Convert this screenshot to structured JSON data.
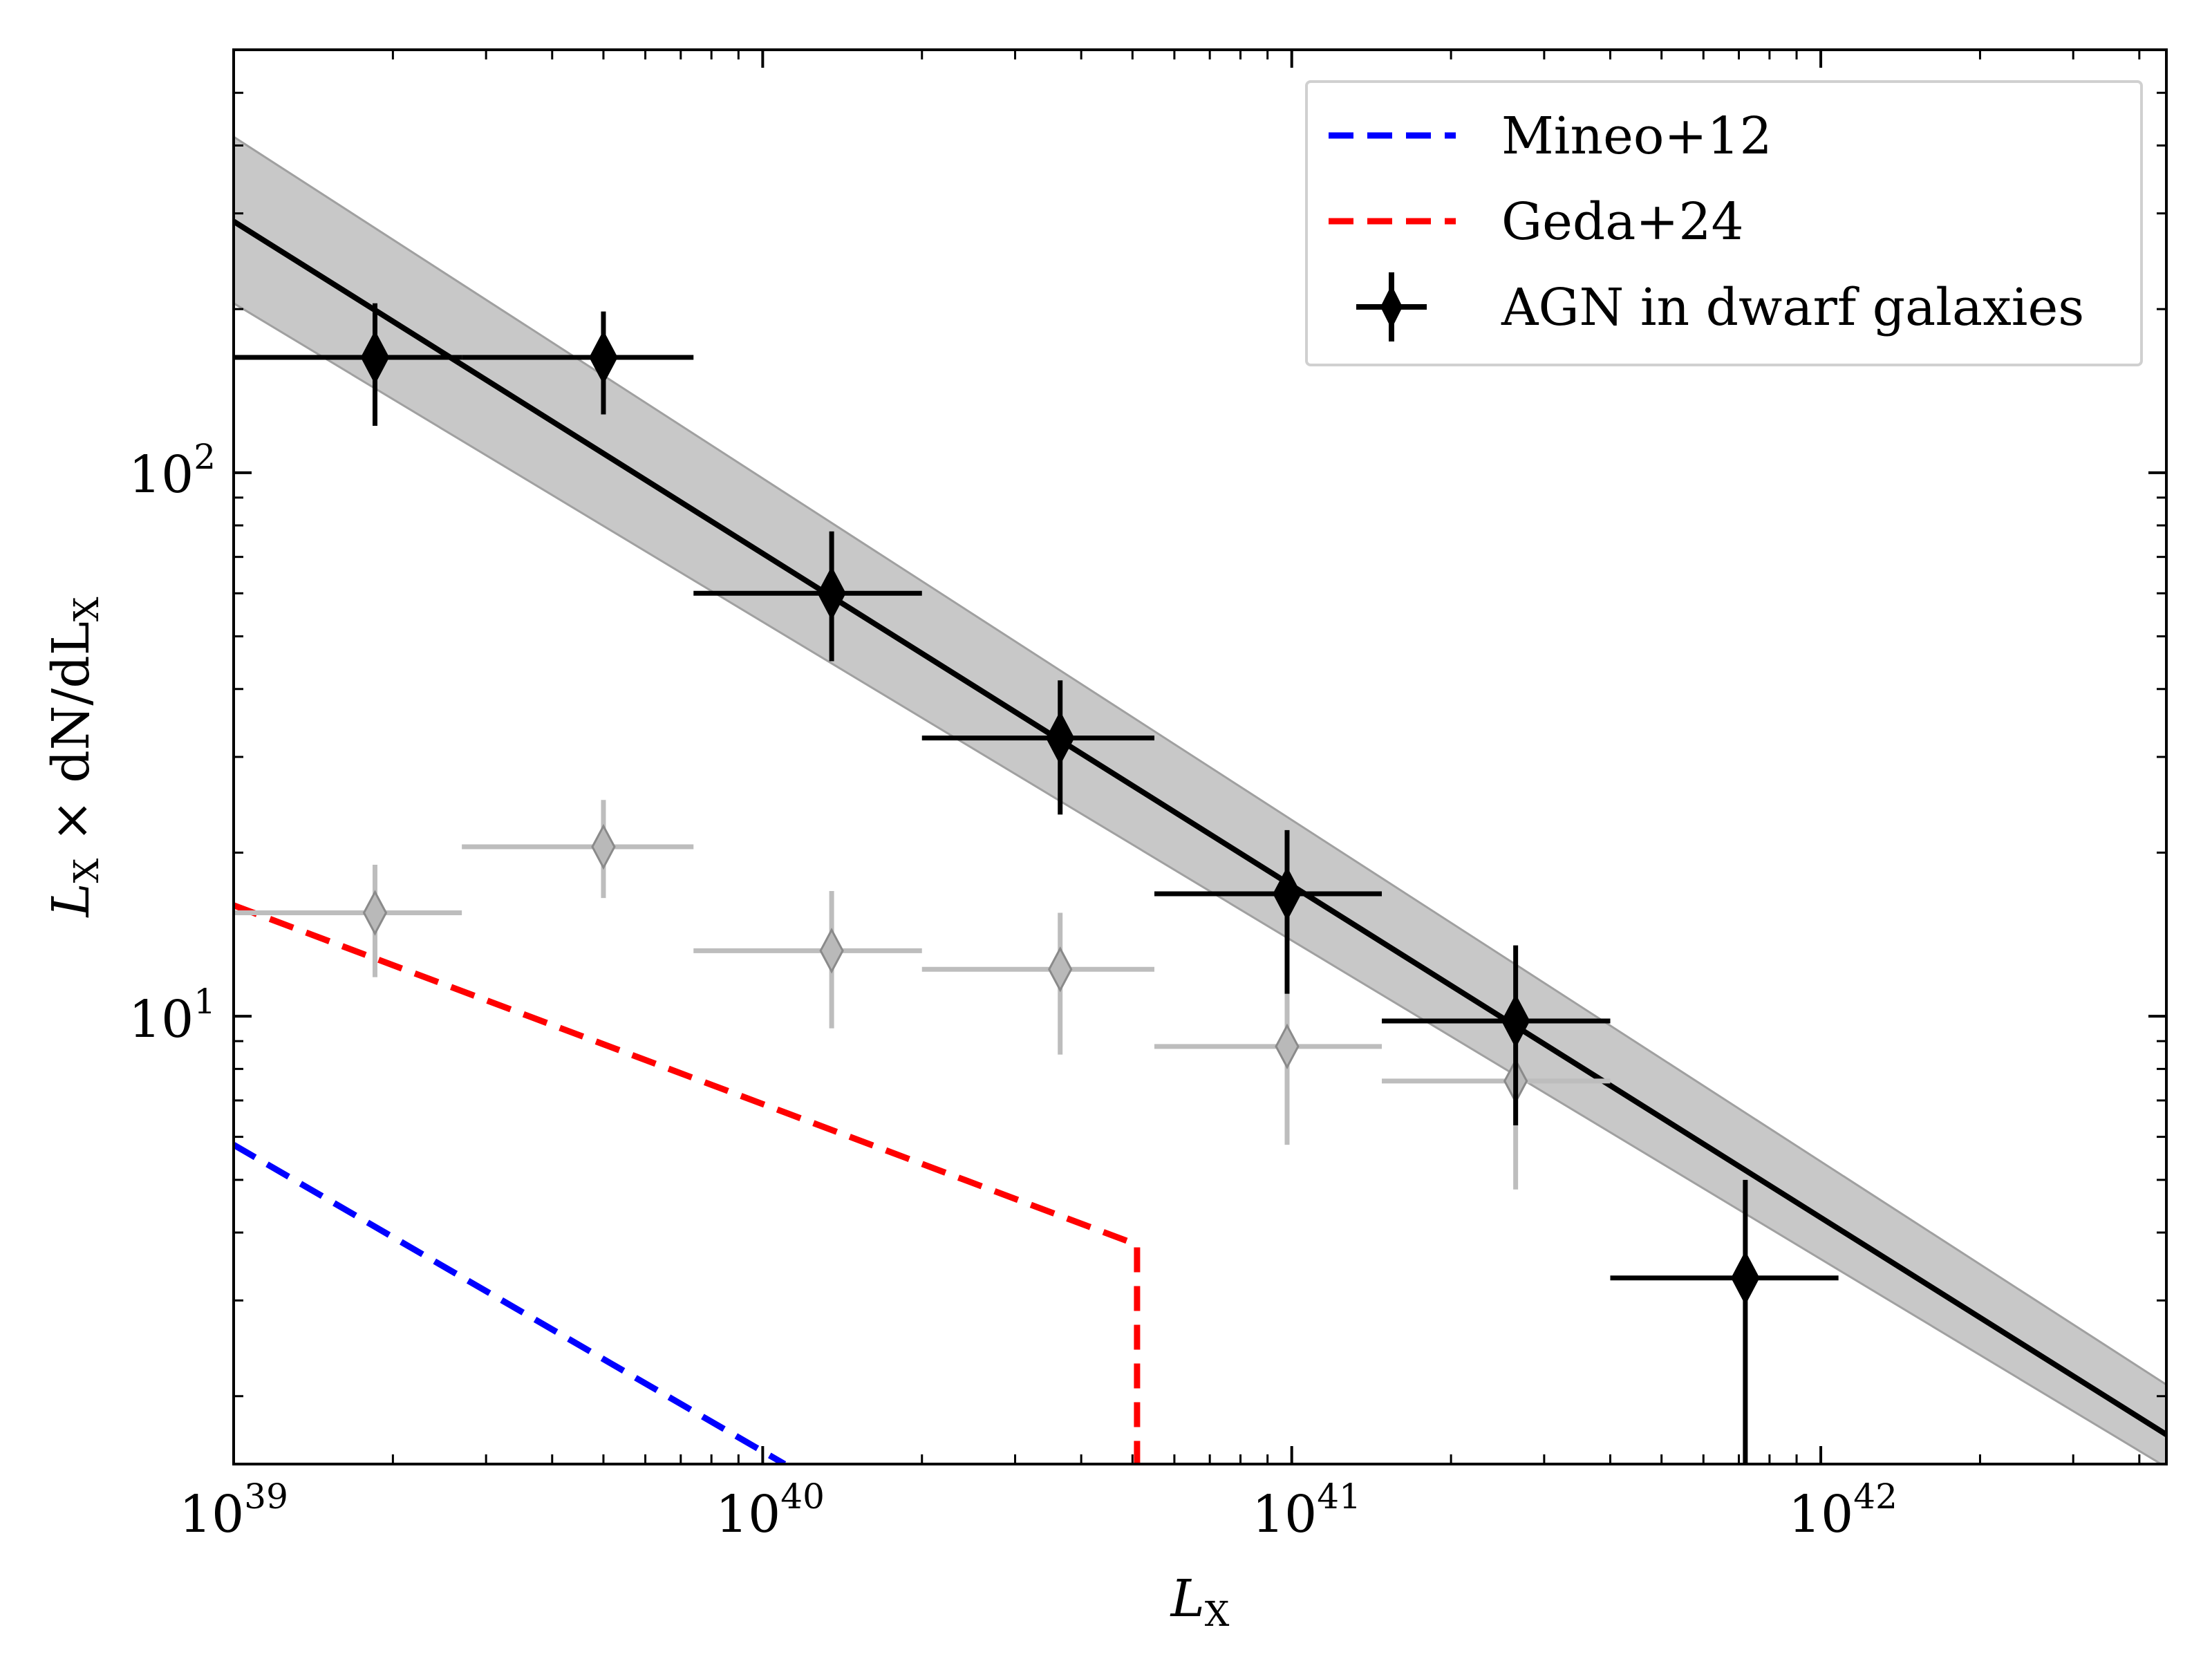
{
  "chart_data": {
    "type": "scatter",
    "scale": {
      "x": "log",
      "y": "log"
    },
    "xlim": [
      1e+39,
      4.5e+42
    ],
    "ylim": [
      1.5,
      600
    ],
    "xlabel": {
      "main": "L",
      "sub": "X"
    },
    "ylabel": {
      "main": "L",
      "sub": "X",
      "rest": " × dN/dL",
      "sub2": "X"
    },
    "x_ticks": [
      {
        "base": "10",
        "exp": "39",
        "value": 1e+39
      },
      {
        "base": "10",
        "exp": "40",
        "value": 1e+40
      },
      {
        "base": "10",
        "exp": "41",
        "value": 1e+41
      },
      {
        "base": "10",
        "exp": "42",
        "value": 1e+42
      }
    ],
    "y_ticks": [
      {
        "base": "10",
        "exp": "1",
        "value": 10
      },
      {
        "base": "10",
        "exp": "2",
        "value": 100
      }
    ],
    "legend": {
      "position": "top-right",
      "entries": [
        {
          "label": "Mineo+12",
          "style": "dashed",
          "color": "#0000ff"
        },
        {
          "label": "Geda+24",
          "style": "dashed",
          "color": "#ff0000"
        },
        {
          "label": "AGN in dwarf galaxies",
          "style": "errorbar-diamond",
          "color": "#000000"
        }
      ]
    },
    "series": [
      {
        "name": "AGN in dwarf galaxies",
        "color": "#000000",
        "points": [
          {
            "x": 1.85e+39,
            "y": 163,
            "xerr": [
              1e+39,
              2.7e+39
            ],
            "yerr": [
              122,
              205
            ]
          },
          {
            "x": 5e+39,
            "y": 163,
            "xerr": [
              2.7e+39,
              7.4e+39
            ],
            "yerr": [
              128,
              198
            ]
          },
          {
            "x": 1.35e+40,
            "y": 60,
            "xerr": [
              7.4e+39,
              2e+40
            ],
            "yerr": [
              45,
              78
            ]
          },
          {
            "x": 3.65e+40,
            "y": 32.5,
            "xerr": [
              2e+40,
              5.5e+40
            ],
            "yerr": [
              23.5,
              41.5
            ]
          },
          {
            "x": 9.8e+40,
            "y": 16.8,
            "xerr": [
              5.5e+40,
              1.48e+41
            ],
            "yerr": [
              11,
              22
            ]
          },
          {
            "x": 2.65e+41,
            "y": 9.8,
            "xerr": [
              1.48e+41,
              4e+41
            ],
            "yerr": [
              6.3,
              13.5
            ]
          },
          {
            "x": 7.2e+41,
            "y": 3.3,
            "xerr": [
              4e+41,
              1.08e+42
            ],
            "yerr": [
              1.5,
              5.0
            ]
          }
        ]
      },
      {
        "name": "AGN in dwarf galaxies (faint)",
        "color": "#9a9a9a",
        "points": [
          {
            "x": 1.85e+39,
            "y": 15.5,
            "xerr": [
              1e+39,
              2.7e+39
            ],
            "yerr": [
              11.8,
              19
            ]
          },
          {
            "x": 5e+39,
            "y": 20.5,
            "xerr": [
              2.7e+39,
              7.4e+39
            ],
            "yerr": [
              16.5,
              25
            ]
          },
          {
            "x": 1.35e+40,
            "y": 13.2,
            "xerr": [
              7.4e+39,
              2e+40
            ],
            "yerr": [
              9.5,
              17
            ]
          },
          {
            "x": 3.65e+40,
            "y": 12.2,
            "xerr": [
              2e+40,
              5.5e+40
            ],
            "yerr": [
              8.5,
              15.5
            ]
          },
          {
            "x": 9.8e+40,
            "y": 8.8,
            "xerr": [
              5.5e+40,
              1.48e+41
            ],
            "yerr": [
              5.8,
              12
            ]
          },
          {
            "x": 2.65e+41,
            "y": 7.6,
            "xerr": [
              1.48e+41,
              4e+41
            ],
            "yerr": [
              4.8,
              10
            ]
          }
        ]
      }
    ],
    "fit": {
      "name": "power-law fit",
      "color": "#000000",
      "line": [
        [
          1e+39,
          290
        ],
        [
          4.5e+42,
          1.7
        ]
      ],
      "band_upper": [
        [
          1e+39,
          415
        ],
        [
          4.5e+42,
          2.1
        ]
      ],
      "band_lower": [
        [
          1e+39,
          205
        ],
        [
          4.5e+42,
          1.48
        ]
      ]
    },
    "models": [
      {
        "name": "Mineo+12",
        "color": "#0000ff",
        "points": [
          [
            1e+39,
            5.8
          ],
          [
            1.1e+40,
            1.5
          ]
        ]
      },
      {
        "name": "Geda+24",
        "color": "#ff0000",
        "points": [
          [
            1e+39,
            16
          ],
          [
            5.1e+40,
            3.8
          ],
          [
            5.1e+40,
            1.5
          ]
        ]
      }
    ]
  }
}
